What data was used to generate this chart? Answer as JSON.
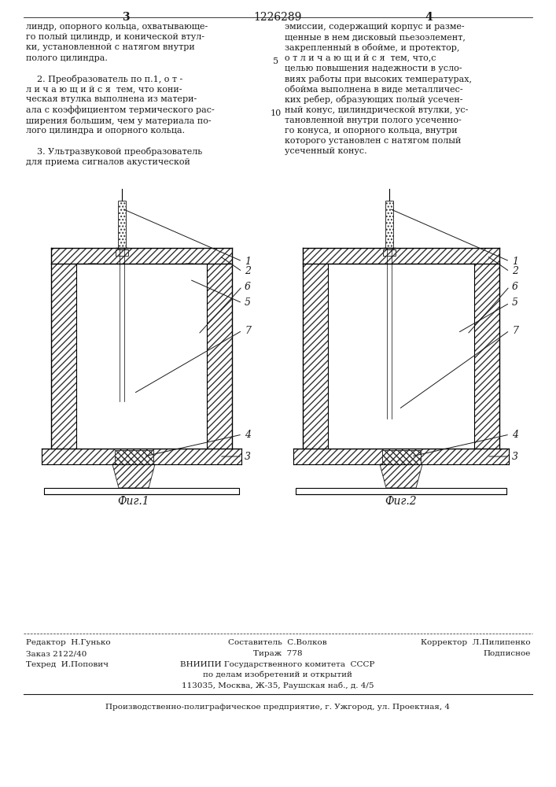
{
  "page_number_left": "3",
  "page_number_center": "1226289",
  "page_number_right": "4",
  "background_color": "#ffffff",
  "text_color": "#1a1a1a",
  "left_column_text": [
    "линдр, опорного кольца, охватывающе-",
    "го полый цилиндр, и конической втул-",
    "ки, установленной с натягом внутри",
    "полого цилиндра.",
    "",
    "    2. Преобразователь по п.1, о т -",
    "л и ч а ю щ и й с я  тем, что кони-",
    "ческая втулка выполнена из матери-",
    "ала с коэффициентом термического рас-",
    "ширения большим, чем у материала по-",
    "лого цилиндра и опорного кольца.",
    "",
    "    3. Ультразвуковой преобразователь",
    "для приема сигналов акустической"
  ],
  "right_column_text": [
    "эмиссии, содержащий корпус и разме-",
    "щенные в нем дисковый пьезоэлемент,",
    "закрепленный в обойме, и протектор,",
    "о т л и ч а ю щ и й с я  тем, что,с",
    "целью повышения надежности в усло-",
    "виях работы при высоких температурах,",
    "обойма выполнена в виде металличес-",
    "ких ребер, образующих полый усечен-",
    "ный конус, цилиндрической втулки, ус-",
    "тановленной внутри полого усеченно-",
    "го конуса, и опорного кольца, внутри",
    "которого установлен с натягом полый",
    "усеченный конус."
  ],
  "fig1_label": "Фиг.1",
  "fig2_label": "Фиг.2",
  "footer_editor": "Редактор  Н.Гунько",
  "footer_composer": "Составитель  С.Волков",
  "footer_corrector": "Корректор  Л.Пилипенко",
  "footer_order": "Заказ 2122/40",
  "footer_tirazh": "Тираж  778",
  "footer_podp": "Подписное",
  "footer_tekhred": "Техред  И.Попович",
  "footer_vnipi1": "ВНИИПИ Государственного комитета  СССР",
  "footer_vnipi2": "по делам изобретений и открытий",
  "footer_addr": "113035, Москва, Ж-35, Раушская наб., д. 4/5",
  "footer_prod": "Производственно-полиграфическое предприятие, г. Ужгород, ул. Проектная, 4"
}
